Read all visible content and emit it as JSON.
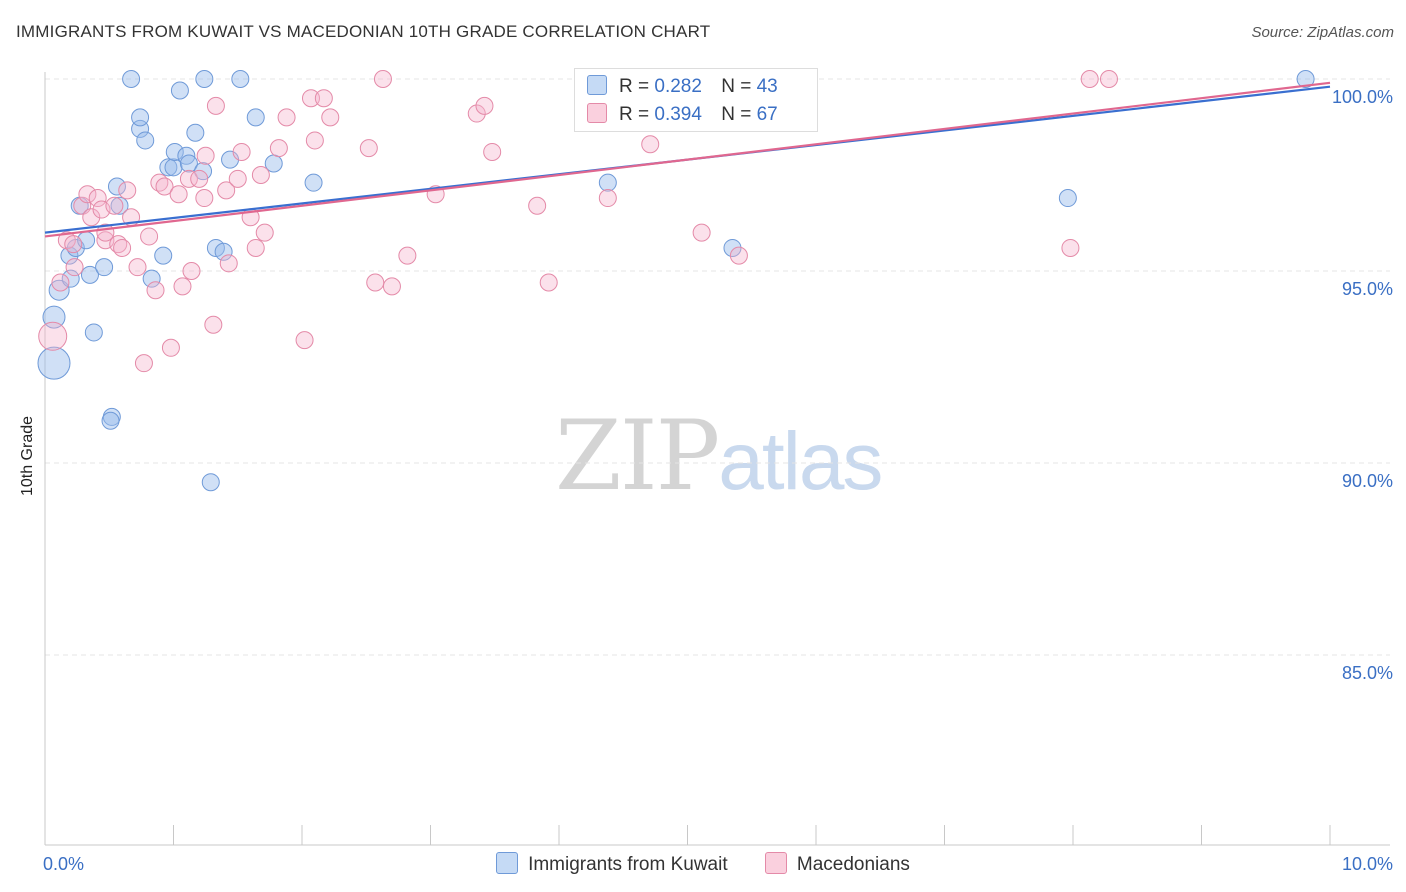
{
  "title": "IMMIGRANTS FROM KUWAIT VS MACEDONIAN 10TH GRADE CORRELATION CHART",
  "source": "Source: ZipAtlas.com",
  "watermark": {
    "zip": "ZIP",
    "atlas": "atlas"
  },
  "legend": [
    {
      "name": "Immigrants from Kuwait",
      "r_label": "R =",
      "r_value": "0.282",
      "n_label": "N =",
      "n_value": "43",
      "color": "#aac8ef",
      "stroke": "#6f9ad8"
    },
    {
      "name": "Macedonians",
      "r_label": "R =",
      "r_value": "0.394",
      "n_label": "N =",
      "n_value": "67",
      "color": "#f6bdd0",
      "stroke": "#e48aa8"
    }
  ],
  "colors": {
    "blue_line": "#3a6fd0",
    "pink_line": "#e0678f",
    "tick_text": "#3a6fc4",
    "grid": "#e4e4e4"
  },
  "chart_data": {
    "type": "scatter",
    "title": "IMMIGRANTS FROM KUWAIT VS MACEDONIAN 10TH GRADE CORRELATION CHART",
    "xlabel": "",
    "ylabel": "10th Grade",
    "xlim": [
      0,
      10
    ],
    "ylim": [
      80.3,
      100.6
    ],
    "x_tick_labels": [
      {
        "value": 0,
        "label": "0.0%"
      },
      {
        "value": 10,
        "label": "10.0%"
      }
    ],
    "y_tick_labels": [
      {
        "value": 100,
        "label": "100.0%"
      },
      {
        "value": 95,
        "label": "95.0%"
      },
      {
        "value": 90,
        "label": "90.0%"
      },
      {
        "value": 85,
        "label": "85.0%"
      }
    ],
    "x_minor_ticks": [
      0,
      1,
      2,
      3,
      4,
      5,
      6,
      7,
      8,
      9,
      10
    ],
    "series": [
      {
        "name": "Immigrants from Kuwait",
        "trend": {
          "x": [
            0,
            10
          ],
          "y": [
            96.0,
            99.8
          ]
        },
        "points": [
          {
            "x": 0.07,
            "y": 92.6,
            "s": 16
          },
          {
            "x": 0.07,
            "y": 93.8,
            "s": 11
          },
          {
            "x": 0.11,
            "y": 94.5,
            "s": 10
          },
          {
            "x": 0.19,
            "y": 95.4
          },
          {
            "x": 0.24,
            "y": 95.6
          },
          {
            "x": 0.2,
            "y": 94.8
          },
          {
            "x": 0.27,
            "y": 96.7
          },
          {
            "x": 0.32,
            "y": 95.8
          },
          {
            "x": 0.35,
            "y": 94.9
          },
          {
            "x": 0.38,
            "y": 93.4
          },
          {
            "x": 0.46,
            "y": 95.1
          },
          {
            "x": 0.58,
            "y": 96.7
          },
          {
            "x": 0.56,
            "y": 97.2
          },
          {
            "x": 0.52,
            "y": 91.2
          },
          {
            "x": 0.51,
            "y": 91.1
          },
          {
            "x": 0.67,
            "y": 100.0
          },
          {
            "x": 0.74,
            "y": 98.7
          },
          {
            "x": 0.74,
            "y": 99.0
          },
          {
            "x": 0.78,
            "y": 98.4
          },
          {
            "x": 0.83,
            "y": 94.8
          },
          {
            "x": 0.92,
            "y": 95.4
          },
          {
            "x": 0.96,
            "y": 97.7
          },
          {
            "x": 1.0,
            "y": 97.7
          },
          {
            "x": 1.01,
            "y": 98.1
          },
          {
            "x": 1.05,
            "y": 99.7
          },
          {
            "x": 1.1,
            "y": 98.0
          },
          {
            "x": 1.12,
            "y": 97.8
          },
          {
            "x": 1.17,
            "y": 98.6
          },
          {
            "x": 1.23,
            "y": 97.6
          },
          {
            "x": 1.24,
            "y": 100.0
          },
          {
            "x": 1.29,
            "y": 89.5
          },
          {
            "x": 1.33,
            "y": 95.6
          },
          {
            "x": 1.39,
            "y": 95.5
          },
          {
            "x": 1.44,
            "y": 97.9
          },
          {
            "x": 1.52,
            "y": 100.0
          },
          {
            "x": 1.64,
            "y": 99.0
          },
          {
            "x": 1.78,
            "y": 97.8
          },
          {
            "x": 2.09,
            "y": 97.3
          },
          {
            "x": 4.38,
            "y": 97.3
          },
          {
            "x": 5.35,
            "y": 95.6
          },
          {
            "x": 7.96,
            "y": 96.9
          },
          {
            "x": 9.81,
            "y": 100.0
          }
        ]
      },
      {
        "name": "Macedonians",
        "trend": {
          "x": [
            0,
            10
          ],
          "y": [
            95.9,
            99.9
          ]
        },
        "points": [
          {
            "x": 0.06,
            "y": 93.3,
            "s": 14
          },
          {
            "x": 0.12,
            "y": 94.7
          },
          {
            "x": 0.17,
            "y": 95.8
          },
          {
            "x": 0.22,
            "y": 95.7
          },
          {
            "x": 0.23,
            "y": 95.1
          },
          {
            "x": 0.29,
            "y": 96.7
          },
          {
            "x": 0.33,
            "y": 97.0
          },
          {
            "x": 0.36,
            "y": 96.4
          },
          {
            "x": 0.41,
            "y": 96.9
          },
          {
            "x": 0.44,
            "y": 96.6
          },
          {
            "x": 0.47,
            "y": 95.8
          },
          {
            "x": 0.47,
            "y": 96.0
          },
          {
            "x": 0.54,
            "y": 96.7
          },
          {
            "x": 0.57,
            "y": 95.7
          },
          {
            "x": 0.6,
            "y": 95.6
          },
          {
            "x": 0.64,
            "y": 97.1
          },
          {
            "x": 0.67,
            "y": 96.4
          },
          {
            "x": 0.72,
            "y": 95.1
          },
          {
            "x": 0.77,
            "y": 92.6
          },
          {
            "x": 0.81,
            "y": 95.9
          },
          {
            "x": 0.86,
            "y": 94.5
          },
          {
            "x": 0.89,
            "y": 97.3
          },
          {
            "x": 0.93,
            "y": 97.2
          },
          {
            "x": 0.98,
            "y": 93.0
          },
          {
            "x": 1.04,
            "y": 97.0
          },
          {
            "x": 1.07,
            "y": 94.6
          },
          {
            "x": 1.12,
            "y": 97.4
          },
          {
            "x": 1.14,
            "y": 95.0
          },
          {
            "x": 1.2,
            "y": 97.4
          },
          {
            "x": 1.24,
            "y": 96.9
          },
          {
            "x": 1.25,
            "y": 98.0
          },
          {
            "x": 1.31,
            "y": 93.6
          },
          {
            "x": 1.33,
            "y": 99.3
          },
          {
            "x": 1.41,
            "y": 97.1
          },
          {
            "x": 1.43,
            "y": 95.2
          },
          {
            "x": 1.5,
            "y": 97.4
          },
          {
            "x": 1.53,
            "y": 98.1
          },
          {
            "x": 1.6,
            "y": 96.4
          },
          {
            "x": 1.64,
            "y": 95.6
          },
          {
            "x": 1.68,
            "y": 97.5
          },
          {
            "x": 1.71,
            "y": 96.0
          },
          {
            "x": 1.82,
            "y": 98.2
          },
          {
            "x": 1.88,
            "y": 99.0
          },
          {
            "x": 2.02,
            "y": 93.2
          },
          {
            "x": 2.07,
            "y": 99.5
          },
          {
            "x": 2.1,
            "y": 98.4
          },
          {
            "x": 2.17,
            "y": 99.5
          },
          {
            "x": 2.22,
            "y": 99.0
          },
          {
            "x": 2.52,
            "y": 98.2
          },
          {
            "x": 2.57,
            "y": 94.7
          },
          {
            "x": 2.63,
            "y": 100.0
          },
          {
            "x": 2.7,
            "y": 94.6
          },
          {
            "x": 2.82,
            "y": 95.4
          },
          {
            "x": 3.04,
            "y": 97.0
          },
          {
            "x": 3.36,
            "y": 99.1
          },
          {
            "x": 3.42,
            "y": 99.3
          },
          {
            "x": 3.48,
            "y": 98.1
          },
          {
            "x": 3.83,
            "y": 96.7
          },
          {
            "x": 3.92,
            "y": 94.7
          },
          {
            "x": 4.38,
            "y": 96.9
          },
          {
            "x": 4.71,
            "y": 98.3
          },
          {
            "x": 4.71,
            "y": 100.0
          },
          {
            "x": 5.11,
            "y": 96.0
          },
          {
            "x": 5.4,
            "y": 95.4
          },
          {
            "x": 7.98,
            "y": 95.6
          },
          {
            "x": 8.13,
            "y": 100.0
          },
          {
            "x": 8.28,
            "y": 100.0
          }
        ]
      }
    ]
  }
}
